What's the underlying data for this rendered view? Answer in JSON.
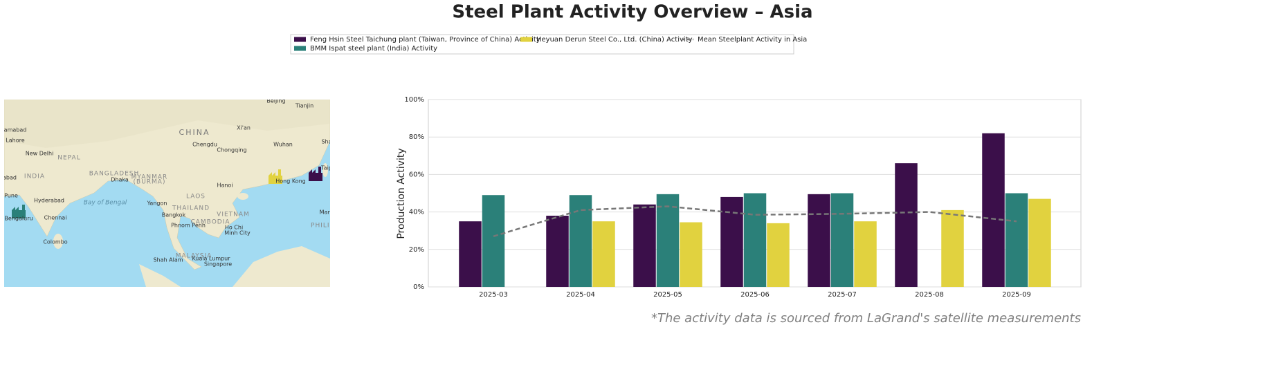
{
  "chart_data": {
    "type": "bar",
    "title": "Steel Plant Activity Overview – Asia",
    "ylabel": "Production Activity",
    "footnote": "*The activity data is sourced from LaGrand's satellite measurements",
    "categories": [
      "2025-03",
      "2025-04",
      "2025-05",
      "2025-06",
      "2025-07",
      "2025-08",
      "2025-09"
    ],
    "series": [
      {
        "name": "Feng Hsin Steel Taichung plant (Taiwan, Province of China) Activity",
        "color": "#3b0f4a",
        "values": [
          35,
          38,
          44,
          48,
          49.5,
          66,
          82
        ]
      },
      {
        "name": "BMM Ispat steel plant (India) Activity",
        "color": "#2b8079",
        "values": [
          49,
          49,
          49.5,
          50,
          50,
          null,
          50
        ]
      },
      {
        "name": "Heyuan Derun Steel Co., Ltd. (China) Activity",
        "color": "#e1d23f",
        "values": [
          null,
          35,
          34.5,
          34,
          35,
          41,
          47
        ]
      },
      {
        "name": "Mean Steelplant Activity in Asia",
        "color": "#777777",
        "type": "line",
        "line_style": "dashed",
        "values": [
          27,
          41,
          43,
          38.5,
          39,
          40,
          35
        ]
      }
    ],
    "ylim": [
      0,
      100
    ],
    "yticks": [
      {
        "value": 0,
        "label": "0%"
      },
      {
        "value": 20,
        "label": "20%"
      },
      {
        "value": 40,
        "label": "40%"
      },
      {
        "value": 60,
        "label": "60%"
      },
      {
        "value": 80,
        "label": "80%"
      },
      {
        "value": 100,
        "label": "100%"
      }
    ],
    "grid": true,
    "legend": "top"
  },
  "map": {
    "labels": [
      "Beijing",
      "Tianjin",
      "CHINA",
      "Xi'an",
      "Chengdu",
      "Chongqing",
      "Wuhan",
      "amabad",
      "Lahore",
      "New Delhi",
      "NEPAL",
      "INDIA",
      "abad",
      "BANGLADESH",
      "Dhaka",
      "MYANMAR",
      "(BURMA)",
      "Hanoi",
      "Hong Kong",
      "Taip",
      "Sha",
      "Hyderabad",
      "Bay of Bengal",
      "Yangon",
      "THAILAND",
      "LAOS",
      "Bangkok",
      "VIETNAM",
      "CAMBODIA",
      "Phnom Penh",
      "Ho Chi",
      "Minh City",
      "Chennai",
      "Bengaluru",
      "Pune",
      "Colombo",
      "MALAYSIA",
      "Kuala Lumpur",
      "Shah Alam",
      "Singapore",
      "Man",
      "PHILIP"
    ]
  }
}
